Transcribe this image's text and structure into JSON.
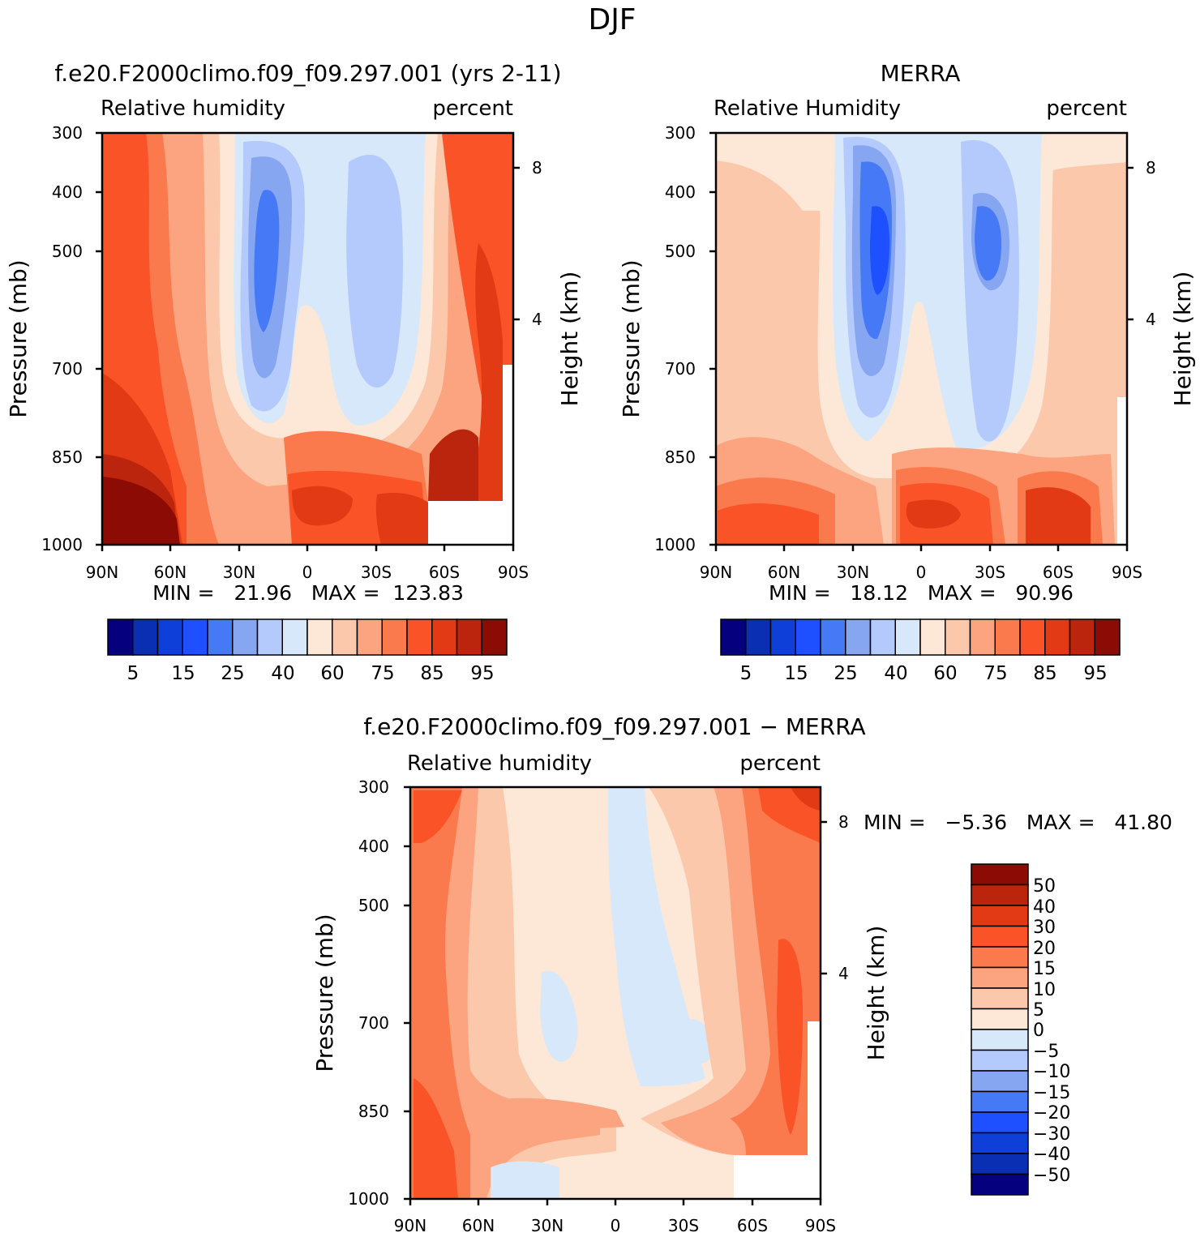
{
  "page": {
    "title": "DJF"
  },
  "panels": {
    "model": {
      "case_title": "f.e20.F2000climo.f09_f09.297.001 (yrs 2-11)",
      "left_label": "Relative humidity",
      "right_label": "percent",
      "stats": "MIN =   21.96   MAX =  123.83"
    },
    "obs": {
      "case_title": "MERRA",
      "left_label": "Relative Humidity",
      "right_label": "percent",
      "stats": "MIN =   18.12   MAX =   90.96"
    },
    "diff": {
      "case_title": "f.e20.F2000climo.f09_f09.297.001 − MERRA",
      "left_label": "Relative humidity",
      "right_label": "percent",
      "stats": "MIN =   −5.36   MAX =   41.80"
    }
  },
  "axes": {
    "ylabel": "Pressure (mb)",
    "ylabel_right": "Height (km)",
    "pressure_ticks": [
      "300",
      "400",
      "500",
      "700",
      "850",
      "1000"
    ],
    "height_ticks": [
      "8",
      "4"
    ],
    "lat_ticks": [
      "90N",
      "60N",
      "30N",
      "0",
      "30S",
      "60S",
      "90S"
    ]
  },
  "colorbars": {
    "rh_labels": [
      "5",
      "15",
      "25",
      "40",
      "60",
      "75",
      "85",
      "95"
    ],
    "rh_colors": [
      "#04007e",
      "#0a2fb3",
      "#0f3fd9",
      "#1e50ff",
      "#4679f5",
      "#86a6f2",
      "#b4cafc",
      "#d8e8fb",
      "#fde7d6",
      "#fcc8ac",
      "#fba47f",
      "#fb7a4d",
      "#f95327",
      "#e23a15",
      "#bb250e",
      "#8c0b04"
    ],
    "diff_labels": [
      "50",
      "40",
      "30",
      "20",
      "15",
      "10",
      "5",
      "0",
      "−5",
      "−10",
      "−15",
      "−20",
      "−30",
      "−40",
      "−50"
    ],
    "diff_colors": [
      "#8c0b04",
      "#bb250e",
      "#e23a15",
      "#f95327",
      "#fb7a4d",
      "#fba47f",
      "#fcc8ac",
      "#fde7d6",
      "#d8e8fb",
      "#b4cafc",
      "#86a6f2",
      "#4679f5",
      "#1e50ff",
      "#0f3fd9",
      "#0a2fb3",
      "#04007e"
    ]
  },
  "chart_data": [
    {
      "type": "heatmap",
      "title": "f.e20.F2000climo.f09_f09.297.001 (yrs 2-11)",
      "subtitle": "Relative humidity  percent",
      "xlabel": "",
      "ylabel": "Pressure (mb)",
      "x": [
        "90N",
        "60N",
        "30N",
        "0",
        "30S",
        "60S",
        "90S"
      ],
      "y": [
        300,
        400,
        500,
        700,
        850,
        1000
      ],
      "values": [
        [
          75,
          70,
          40,
          50,
          40,
          70,
          80
        ],
        [
          80,
          70,
          20,
          45,
          30,
          70,
          85
        ],
        [
          85,
          75,
          20,
          55,
          30,
          75,
          90
        ],
        [
          90,
          75,
          35,
          65,
          40,
          75,
          90
        ],
        [
          95,
          80,
          65,
          85,
          70,
          90,
          95
        ],
        [
          95,
          85,
          75,
          90,
          90,
          85,
          95
        ]
      ],
      "min": 21.96,
      "max": 123.83
    },
    {
      "type": "heatmap",
      "title": "MERRA",
      "subtitle": "Relative Humidity  percent",
      "xlabel": "",
      "ylabel": "Pressure (mb)",
      "x": [
        "90N",
        "60N",
        "30N",
        "0",
        "30S",
        "60S",
        "90S"
      ],
      "y": [
        300,
        400,
        500,
        700,
        850,
        1000
      ],
      "values": [
        [
          60,
          65,
          40,
          50,
          40,
          65,
          60
        ],
        [
          65,
          65,
          15,
          45,
          25,
          65,
          65
        ],
        [
          65,
          65,
          15,
          55,
          25,
          65,
          65
        ],
        [
          65,
          65,
          30,
          65,
          40,
          70,
          75
        ],
        [
          75,
          75,
          55,
          70,
          60,
          75,
          80
        ],
        [
          85,
          85,
          65,
          90,
          75,
          85,
          85
        ]
      ],
      "min": 18.12,
      "max": 90.96
    },
    {
      "type": "heatmap",
      "title": "f.e20.F2000climo.f09_f09.297.001 − MERRA",
      "subtitle": "Relative humidity  percent",
      "xlabel": "",
      "ylabel": "Pressure (mb)",
      "x": [
        "90N",
        "60N",
        "30N",
        "0",
        "30S",
        "60S",
        "90S"
      ],
      "y": [
        300,
        400,
        500,
        700,
        850,
        1000
      ],
      "values": [
        [
          25,
          15,
          5,
          0,
          10,
          15,
          30
        ],
        [
          20,
          15,
          5,
          0,
          10,
          15,
          25
        ],
        [
          20,
          15,
          5,
          0,
          5,
          15,
          20
        ],
        [
          20,
          15,
          0,
          0,
          5,
          15,
          20
        ],
        [
          15,
          10,
          5,
          5,
          10,
          15,
          15
        ],
        [
          20,
          5,
          0,
          5,
          5,
          10,
          15
        ]
      ],
      "min": -5.36,
      "max": 41.8
    }
  ]
}
